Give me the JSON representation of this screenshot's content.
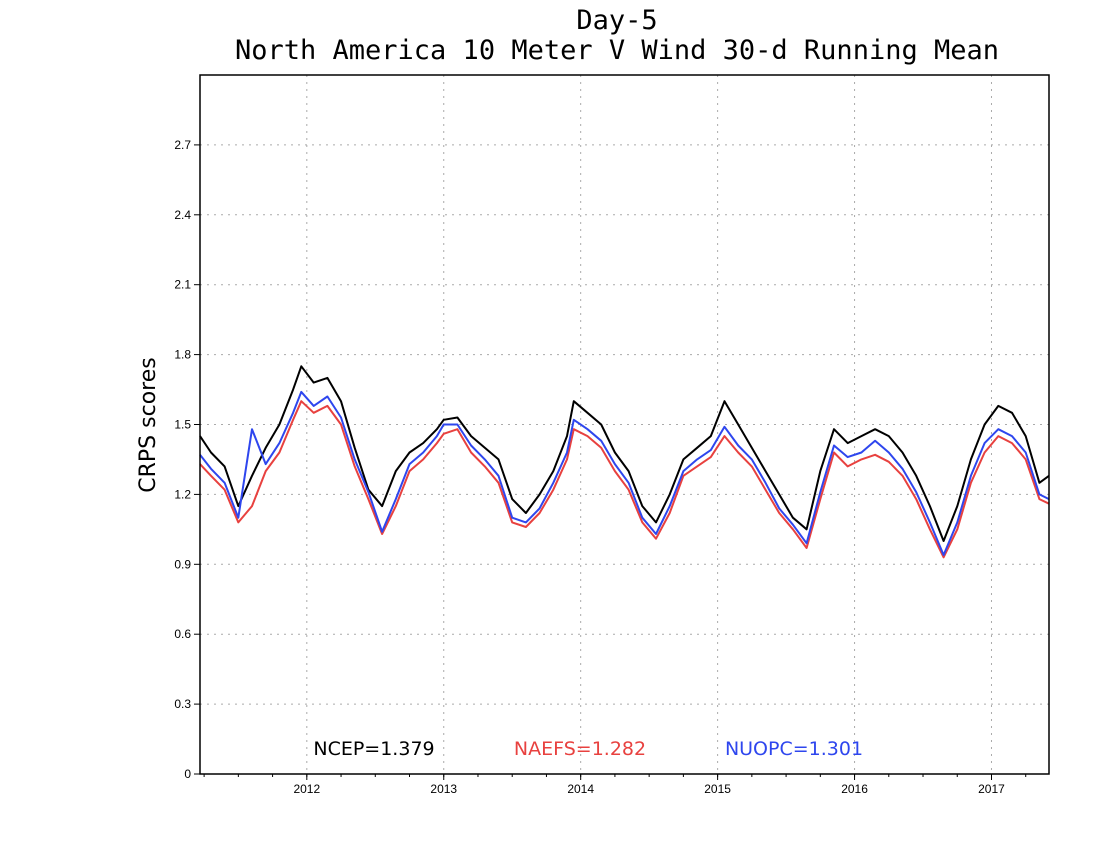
{
  "chart_data": {
    "type": "line",
    "title": "Day-5",
    "subtitle": "North America 10 Meter V Wind 30-d Running Mean",
    "ylabel": "CRPS scores",
    "xlabel": "",
    "ylim": [
      0,
      3.0
    ],
    "xlim": [
      2011.22,
      2017.42
    ],
    "yticks": [
      "0",
      "0.3",
      "0.6",
      "0.9",
      "1.2",
      "1.5",
      "1.8",
      "2.1",
      "2.4",
      "2.7"
    ],
    "xticks": [
      "2012",
      "2013",
      "2014",
      "2015",
      "2016",
      "2017"
    ],
    "grid": true,
    "legend_placement": "bottom",
    "series": [
      {
        "name": "NCEP",
        "label": "NCEP=1.379",
        "color": "#000000",
        "x": [
          2011.22,
          2011.3,
          2011.4,
          2011.5,
          2011.6,
          2011.7,
          2011.8,
          2011.9,
          2011.96,
          2012.05,
          2012.15,
          2012.25,
          2012.35,
          2012.45,
          2012.55,
          2012.65,
          2012.75,
          2012.85,
          2012.95,
          2013.0,
          2013.1,
          2013.2,
          2013.3,
          2013.4,
          2013.5,
          2013.6,
          2013.7,
          2013.8,
          2013.9,
          2013.95,
          2014.05,
          2014.15,
          2014.25,
          2014.35,
          2014.45,
          2014.55,
          2014.65,
          2014.75,
          2014.85,
          2014.95,
          2015.05,
          2015.15,
          2015.25,
          2015.35,
          2015.45,
          2015.55,
          2015.65,
          2015.75,
          2015.85,
          2015.95,
          2016.05,
          2016.15,
          2016.25,
          2016.35,
          2016.45,
          2016.55,
          2016.65,
          2016.75,
          2016.85,
          2016.95,
          2017.05,
          2017.15,
          2017.25,
          2017.35,
          2017.42
        ],
        "y": [
          1.45,
          1.38,
          1.32,
          1.15,
          1.28,
          1.4,
          1.5,
          1.65,
          1.75,
          1.68,
          1.7,
          1.6,
          1.4,
          1.22,
          1.15,
          1.3,
          1.38,
          1.42,
          1.48,
          1.52,
          1.53,
          1.45,
          1.4,
          1.35,
          1.18,
          1.12,
          1.2,
          1.3,
          1.45,
          1.6,
          1.55,
          1.5,
          1.38,
          1.3,
          1.15,
          1.08,
          1.2,
          1.35,
          1.4,
          1.45,
          1.6,
          1.5,
          1.4,
          1.3,
          1.2,
          1.1,
          1.05,
          1.3,
          1.48,
          1.42,
          1.45,
          1.48,
          1.45,
          1.38,
          1.28,
          1.15,
          1.0,
          1.15,
          1.35,
          1.5,
          1.58,
          1.55,
          1.45,
          1.25,
          1.28
        ]
      },
      {
        "name": "NAEFS",
        "label": "NAEFS=1.282",
        "color": "#e8413f",
        "x": [
          2011.22,
          2011.3,
          2011.4,
          2011.5,
          2011.6,
          2011.7,
          2011.8,
          2011.9,
          2011.96,
          2012.05,
          2012.15,
          2012.25,
          2012.35,
          2012.45,
          2012.55,
          2012.65,
          2012.75,
          2012.85,
          2012.95,
          2013.0,
          2013.1,
          2013.2,
          2013.3,
          2013.4,
          2013.5,
          2013.6,
          2013.7,
          2013.8,
          2013.9,
          2013.95,
          2014.05,
          2014.15,
          2014.25,
          2014.35,
          2014.45,
          2014.55,
          2014.65,
          2014.75,
          2014.85,
          2014.95,
          2015.05,
          2015.15,
          2015.25,
          2015.35,
          2015.45,
          2015.55,
          2015.65,
          2015.75,
          2015.85,
          2015.95,
          2016.05,
          2016.15,
          2016.25,
          2016.35,
          2016.45,
          2016.55,
          2016.65,
          2016.75,
          2016.85,
          2016.95,
          2017.05,
          2017.15,
          2017.25,
          2017.35,
          2017.42
        ],
        "y": [
          1.33,
          1.28,
          1.22,
          1.08,
          1.15,
          1.3,
          1.38,
          1.52,
          1.6,
          1.55,
          1.58,
          1.5,
          1.32,
          1.18,
          1.03,
          1.15,
          1.3,
          1.35,
          1.42,
          1.46,
          1.48,
          1.38,
          1.32,
          1.25,
          1.08,
          1.06,
          1.12,
          1.22,
          1.35,
          1.48,
          1.45,
          1.4,
          1.3,
          1.22,
          1.08,
          1.01,
          1.12,
          1.28,
          1.32,
          1.36,
          1.45,
          1.38,
          1.32,
          1.22,
          1.12,
          1.05,
          0.97,
          1.18,
          1.38,
          1.32,
          1.35,
          1.37,
          1.34,
          1.28,
          1.18,
          1.05,
          0.93,
          1.05,
          1.25,
          1.38,
          1.45,
          1.42,
          1.35,
          1.18,
          1.16
        ]
      },
      {
        "name": "NUOPC",
        "label": "NUOPC=1.301",
        "color": "#2e46ee",
        "x": [
          2011.22,
          2011.3,
          2011.4,
          2011.5,
          2011.6,
          2011.7,
          2011.8,
          2011.9,
          2011.96,
          2012.05,
          2012.15,
          2012.25,
          2012.35,
          2012.45,
          2012.55,
          2012.65,
          2012.75,
          2012.85,
          2012.95,
          2013.0,
          2013.1,
          2013.2,
          2013.3,
          2013.4,
          2013.5,
          2013.6,
          2013.7,
          2013.8,
          2013.9,
          2013.95,
          2014.05,
          2014.15,
          2014.25,
          2014.35,
          2014.45,
          2014.55,
          2014.65,
          2014.75,
          2014.85,
          2014.95,
          2015.05,
          2015.15,
          2015.25,
          2015.35,
          2015.45,
          2015.55,
          2015.65,
          2015.75,
          2015.85,
          2015.95,
          2016.05,
          2016.15,
          2016.25,
          2016.35,
          2016.45,
          2016.55,
          2016.65,
          2016.75,
          2016.85,
          2016.95,
          2017.05,
          2017.15,
          2017.25,
          2017.35,
          2017.42
        ],
        "y": [
          1.37,
          1.31,
          1.25,
          1.1,
          1.48,
          1.33,
          1.42,
          1.55,
          1.64,
          1.58,
          1.62,
          1.53,
          1.35,
          1.21,
          1.04,
          1.18,
          1.33,
          1.38,
          1.45,
          1.5,
          1.5,
          1.41,
          1.35,
          1.28,
          1.1,
          1.08,
          1.14,
          1.25,
          1.38,
          1.52,
          1.48,
          1.43,
          1.33,
          1.25,
          1.1,
          1.03,
          1.15,
          1.3,
          1.35,
          1.39,
          1.49,
          1.41,
          1.35,
          1.25,
          1.14,
          1.07,
          0.99,
          1.21,
          1.41,
          1.36,
          1.38,
          1.43,
          1.38,
          1.31,
          1.21,
          1.08,
          0.94,
          1.08,
          1.28,
          1.42,
          1.48,
          1.45,
          1.38,
          1.2,
          1.18
        ]
      }
    ]
  }
}
